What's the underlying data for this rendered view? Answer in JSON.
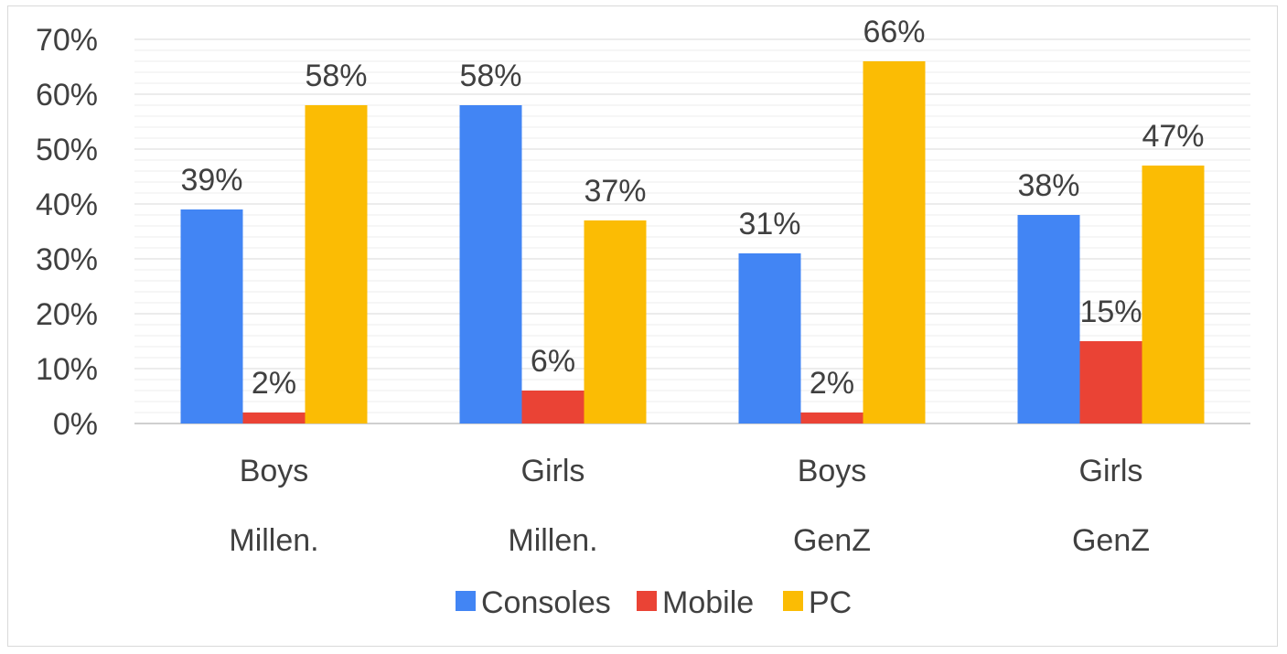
{
  "chart_data": {
    "type": "bar",
    "categories": [
      [
        "Boys",
        "Millen."
      ],
      [
        "Girls",
        "Millen."
      ],
      [
        "Boys",
        "GenZ"
      ],
      [
        "Girls",
        "GenZ"
      ]
    ],
    "series": [
      {
        "name": "Consoles",
        "color": "#4285f4",
        "values": [
          39,
          58,
          31,
          38
        ],
        "labels": [
          "39%",
          "58%",
          "31%",
          "38%"
        ]
      },
      {
        "name": "Mobile",
        "color": "#ea4335",
        "values": [
          2,
          6,
          2,
          15
        ],
        "labels": [
          "2%",
          "6%",
          "2%",
          "15%"
        ]
      },
      {
        "name": "PC",
        "color": "#fbbc04",
        "values": [
          58,
          37,
          66,
          47
        ],
        "labels": [
          "58%",
          "37%",
          "66%",
          "47%"
        ]
      }
    ],
    "ylim": [
      0,
      70
    ],
    "yticks": [
      "0%",
      "10%",
      "20%",
      "30%",
      "40%",
      "50%",
      "60%",
      "70%"
    ],
    "title": "",
    "xlabel": "",
    "ylabel": "",
    "grid": true,
    "legend": "bottom"
  }
}
